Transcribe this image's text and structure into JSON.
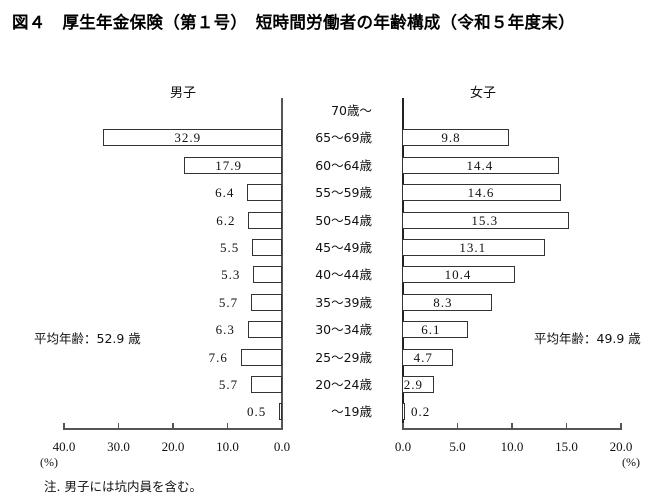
{
  "title": "図４　厚生年金保険（第１号）　短時間労働者の年齢構成（令和５年度末）",
  "male": {
    "label": "男子",
    "average": "平均年齢：52.9 歳",
    "axis_ticks": [
      "40.0",
      "30.0",
      "20.0",
      "10.0",
      "0.0"
    ],
    "unit": "(%)"
  },
  "female": {
    "label": "女子",
    "average": "平均年齢：49.9 歳",
    "axis_ticks": [
      "0.0",
      "5.0",
      "10.0",
      "15.0",
      "20.0"
    ],
    "unit": "(%)"
  },
  "age_groups": [
    "70歳～",
    "65～69歳",
    "60～64歳",
    "55～59歳",
    "50～54歳",
    "45～49歳",
    "40～44歳",
    "35～39歳",
    "30～34歳",
    "25～29歳",
    "20～24歳",
    "～19歳"
  ],
  "note": "注. 男子には坑内員を含む。",
  "chart_data": {
    "type": "bar",
    "orientation": "horizontal",
    "title": "図４　厚生年金保険（第１号）　短時間労働者の年齢構成（令和５年度末）",
    "categories": [
      "70歳～",
      "65～69歳",
      "60～64歳",
      "55～59歳",
      "50～54歳",
      "45～49歳",
      "40～44歳",
      "35～39歳",
      "30～34歳",
      "25～29歳",
      "20～24歳",
      "～19歳"
    ],
    "series": [
      {
        "name": "男子",
        "values": [
          null,
          32.9,
          17.9,
          6.4,
          6.2,
          5.5,
          5.3,
          5.7,
          6.3,
          7.6,
          5.7,
          0.5
        ],
        "xlim": [
          40,
          0
        ],
        "ticks": [
          40,
          30,
          20,
          10,
          0
        ],
        "average_age": 52.9
      },
      {
        "name": "女子",
        "values": [
          null,
          9.8,
          14.4,
          14.6,
          15.3,
          13.1,
          10.4,
          8.3,
          6.1,
          4.7,
          2.9,
          0.2
        ],
        "xlim": [
          0,
          20
        ],
        "ticks": [
          0,
          5,
          10,
          15,
          20
        ],
        "average_age": 49.9
      }
    ],
    "xlabel": "(%)",
    "ylabel": "",
    "annotations": [
      "平均年齢：52.9 歳",
      "平均年齢：49.9 歳",
      "注. 男子には坑内員を含む。"
    ],
    "grid": false,
    "legend": "none"
  }
}
